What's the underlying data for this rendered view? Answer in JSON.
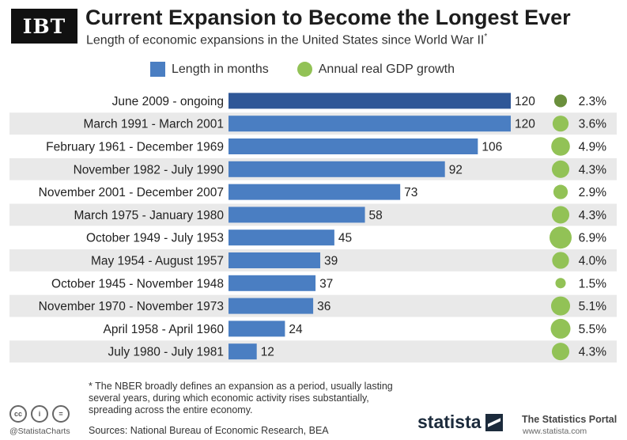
{
  "header": {
    "logo": "IBT",
    "title": "Current Expansion to Become the Longest Ever",
    "subtitle": "Length of economic expansions in the United States since World War II",
    "subtitle_mark": "*"
  },
  "legend": {
    "bars_label": "Length in months",
    "dots_label": "Annual real GDP growth"
  },
  "chart_data": {
    "type": "bar",
    "orientation": "horizontal",
    "categories": [
      "June 2009 - ongoing",
      "March 1991 - March 2001",
      "February 1961 - December 1969",
      "November 1982 - July 1990",
      "November 2001 - December 2007",
      "March 1975 - January 1980",
      "October 1949 - July 1953",
      "May 1954 - August 1957",
      "October 1945 - November 1948",
      "November 1970 - November 1973",
      "April 1958 - April 1960",
      "July 1980 - July 1981"
    ],
    "series": [
      {
        "name": "Length in months",
        "values": [
          120,
          120,
          106,
          92,
          73,
          58,
          45,
          39,
          37,
          36,
          24,
          12
        ]
      },
      {
        "name": "Annual real GDP growth",
        "values": [
          2.3,
          3.6,
          4.9,
          4.3,
          2.9,
          4.3,
          6.9,
          4.0,
          1.5,
          5.1,
          5.5,
          4.3
        ]
      }
    ],
    "gdp_labels": [
      "2.3%",
      "3.6%",
      "4.9%",
      "4.3%",
      "2.9%",
      "4.3%",
      "6.9%",
      "4.0%",
      "1.5%",
      "5.1%",
      "5.5%",
      "4.3%"
    ],
    "highlight_index": 0,
    "xlim": [
      0,
      120
    ],
    "colors": {
      "bar": "#4a7ec2",
      "bar_highlight": "#2f5797",
      "dot": "#92c256",
      "dot_highlight": "#6a8f3c",
      "stripe": "#e9e9e9"
    }
  },
  "footer": {
    "footnote": "* The NBER broadly defines an expansion as a period, usually lasting several years, during which economic activity rises substantially, spreading across the entire economy.",
    "handle": "@StatistaCharts",
    "sources": "Sources: National Bureau of Economic Research, BEA",
    "brand": "statista",
    "portal": "The Statistics Portal",
    "portal_url": "www.statista.com",
    "cc_icons": [
      "cc",
      "i",
      "="
    ]
  }
}
